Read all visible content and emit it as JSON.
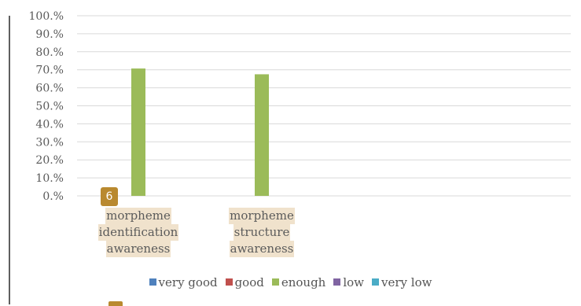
{
  "badge": {
    "text": "6"
  },
  "chart_data": {
    "type": "bar",
    "categories": [
      [
        "morpheme",
        "identification",
        "awareness"
      ],
      [
        "morpheme",
        "structure",
        "awareness"
      ]
    ],
    "series": [
      {
        "name": "very good",
        "color": "#4f81bd",
        "values": [
          0,
          0
        ]
      },
      {
        "name": "good",
        "color": "#c0504d",
        "values": [
          0,
          0
        ]
      },
      {
        "name": "enough",
        "color": "#9bbb59",
        "values": [
          70.7,
          67.5
        ]
      },
      {
        "name": "low",
        "color": "#8064a2",
        "values": [
          0,
          0
        ]
      },
      {
        "name": "very low",
        "color": "#4bacc6",
        "values": [
          0,
          0
        ]
      }
    ],
    "yticks": [
      "0.%",
      "10.%",
      "20.%",
      "30.%",
      "40.%",
      "50.%",
      "60.%",
      "70.%",
      "80.%",
      "90.%",
      "100.%"
    ],
    "ylim": [
      0,
      100
    ],
    "grid": true,
    "legend_position": "bottom"
  }
}
